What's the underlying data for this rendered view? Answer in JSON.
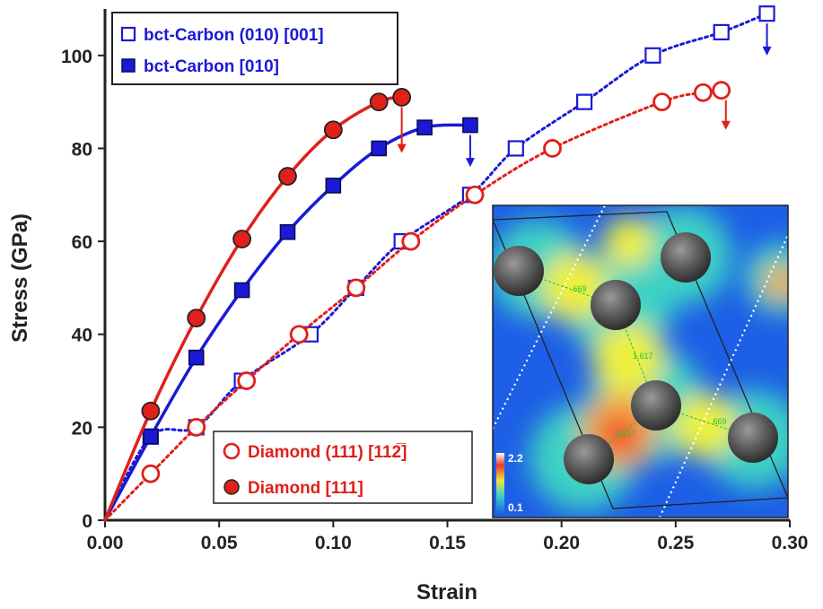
{
  "chart_data": {
    "type": "line",
    "xlabel": "Strain",
    "ylabel": "Stress (GPa)",
    "xlim": [
      0.0,
      0.3
    ],
    "ylim": [
      0,
      110
    ],
    "xticks": [
      "0.00",
      "0.05",
      "0.10",
      "0.15",
      "0.20",
      "0.25",
      "0.30"
    ],
    "yticks": [
      "0",
      "20",
      "40",
      "60",
      "80",
      "100"
    ],
    "grid": false,
    "legend_placement": [
      "top-left",
      "bottom-left"
    ],
    "series": [
      {
        "name": "bct-Carbon (010) [001]",
        "color": "#1a1ad6",
        "marker": "open-square",
        "line": "dotted",
        "x": [
          0.0,
          0.02,
          0.04,
          0.06,
          0.09,
          0.11,
          0.13,
          0.16,
          0.18,
          0.21,
          0.24,
          0.27,
          0.29
        ],
        "y": [
          0,
          18,
          20,
          30,
          40,
          50,
          60,
          70,
          80,
          90,
          100,
          105,
          109
        ]
      },
      {
        "name": "bct-Carbon [010]",
        "color": "#1a1ad6",
        "marker": "filled-square",
        "line": "solid",
        "x": [
          0.0,
          0.02,
          0.04,
          0.06,
          0.08,
          0.1,
          0.12,
          0.14,
          0.16
        ],
        "y": [
          0,
          18,
          35,
          49.5,
          62,
          72,
          80,
          84.5,
          85
        ]
      },
      {
        "name": "Diamond (111) [11̅2]",
        "color": "#e0201a",
        "marker": "open-circle",
        "line": "dotted",
        "x": [
          0.0,
          0.02,
          0.04,
          0.062,
          0.085,
          0.11,
          0.134,
          0.162,
          0.196,
          0.244,
          0.262,
          0.27
        ],
        "y": [
          0,
          10,
          20,
          30,
          40,
          50,
          60,
          70,
          80,
          90,
          92,
          92.5
        ]
      },
      {
        "name": "Diamond [111]",
        "color": "#e0201a",
        "marker": "filled-circle",
        "line": "solid",
        "x": [
          0.0,
          0.02,
          0.04,
          0.06,
          0.08,
          0.1,
          0.12,
          0.13
        ],
        "y": [
          0,
          23.5,
          43.5,
          60.5,
          74,
          84,
          90,
          91
        ]
      }
    ],
    "legend_top": [
      "bct-Carbon (010) [001]",
      "bct-Carbon [010]"
    ],
    "legend_bottom": [
      "Diamond (111) [112̅]",
      "Diamond [111]"
    ],
    "failure_arrows": [
      {
        "color": "#e0201a",
        "x": 0.13,
        "y_from": 91,
        "y_to": 79
      },
      {
        "color": "#1a1ad6",
        "x": 0.16,
        "y_from": 85,
        "y_to": 76
      },
      {
        "color": "#1a1ad6",
        "x": 0.29,
        "y_from": 109,
        "y_to": 100
      },
      {
        "color": "#e0201a",
        "x": 0.272,
        "y_from": 92.5,
        "y_to": 84
      }
    ],
    "inset": {
      "colorbar_max": "2.2",
      "colorbar_min": "0.1",
      "bond_labels": [
        ".669",
        "1.617",
        "1.617",
        ".669"
      ]
    }
  }
}
